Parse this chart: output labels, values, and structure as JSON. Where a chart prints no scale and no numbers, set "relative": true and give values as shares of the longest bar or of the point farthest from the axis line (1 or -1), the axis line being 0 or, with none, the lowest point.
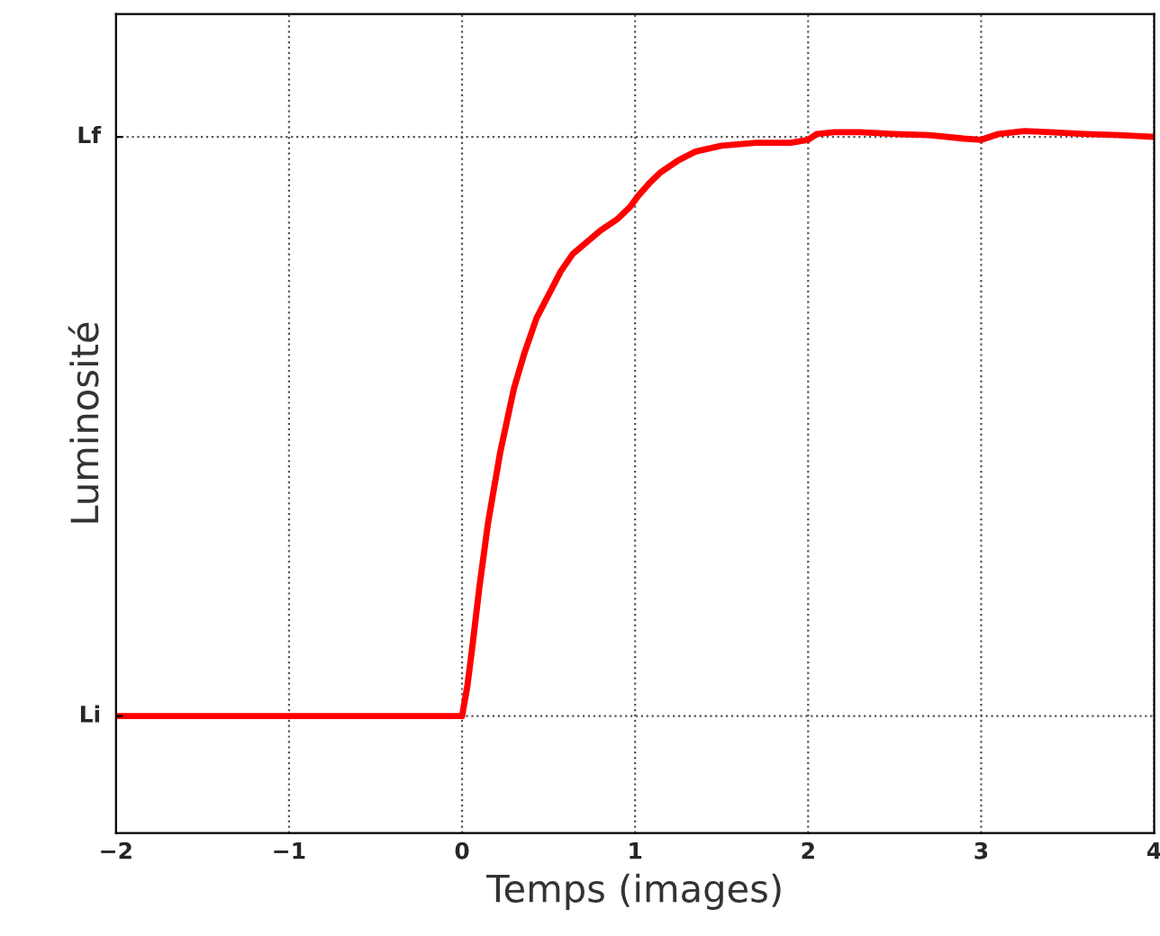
{
  "chart_data": {
    "type": "line",
    "xlabel": "Temps (images)",
    "ylabel": "Luminosité",
    "relative": true,
    "x": [
      -2,
      -1.8,
      -1.6,
      -1.4,
      -1.2,
      -1.0,
      -0.8,
      -0.6,
      -0.4,
      -0.2,
      0,
      0.03,
      0.06,
      0.1,
      0.15,
      0.22,
      0.3,
      0.36,
      0.43,
      0.5,
      0.57,
      0.64,
      0.72,
      0.8,
      0.9,
      0.97,
      1.02,
      1.08,
      1.15,
      1.25,
      1.35,
      1.5,
      1.7,
      1.9,
      2.0,
      2.05,
      2.15,
      2.3,
      2.5,
      2.7,
      2.9,
      3.0,
      3.1,
      3.25,
      3.4,
      3.6,
      3.8,
      4.0
    ],
    "series": [
      {
        "color": "#ff0000",
        "values": [
          0.0,
          0.0,
          0.0,
          0.0,
          0.0,
          0.0,
          0.0,
          0.0,
          0.0,
          0.0,
          0.0,
          0.05,
          0.12,
          0.22,
          0.33,
          0.45,
          0.56,
          0.62,
          0.68,
          0.72,
          0.76,
          0.79,
          0.81,
          0.83,
          0.85,
          0.87,
          0.89,
          0.91,
          0.93,
          0.95,
          0.965,
          0.975,
          0.98,
          0.98,
          0.985,
          0.995,
          0.998,
          0.998,
          0.995,
          0.993,
          0.987,
          0.985,
          0.995,
          1.0,
          0.998,
          0.995,
          0.993,
          0.99
        ]
      }
    ],
    "xlim": [
      -2,
      4
    ],
    "xticks": [
      {
        "value": -2,
        "label": "−2"
      },
      {
        "value": -1,
        "label": "−1"
      },
      0,
      1,
      2,
      3,
      4
    ],
    "ref_lines": [
      {
        "axis": "y",
        "value": 0,
        "label": "Li"
      },
      {
        "axis": "y",
        "value": 0.99,
        "label": "Lf"
      }
    ],
    "grid": "x",
    "line_style": "solid",
    "marker": "none"
  }
}
